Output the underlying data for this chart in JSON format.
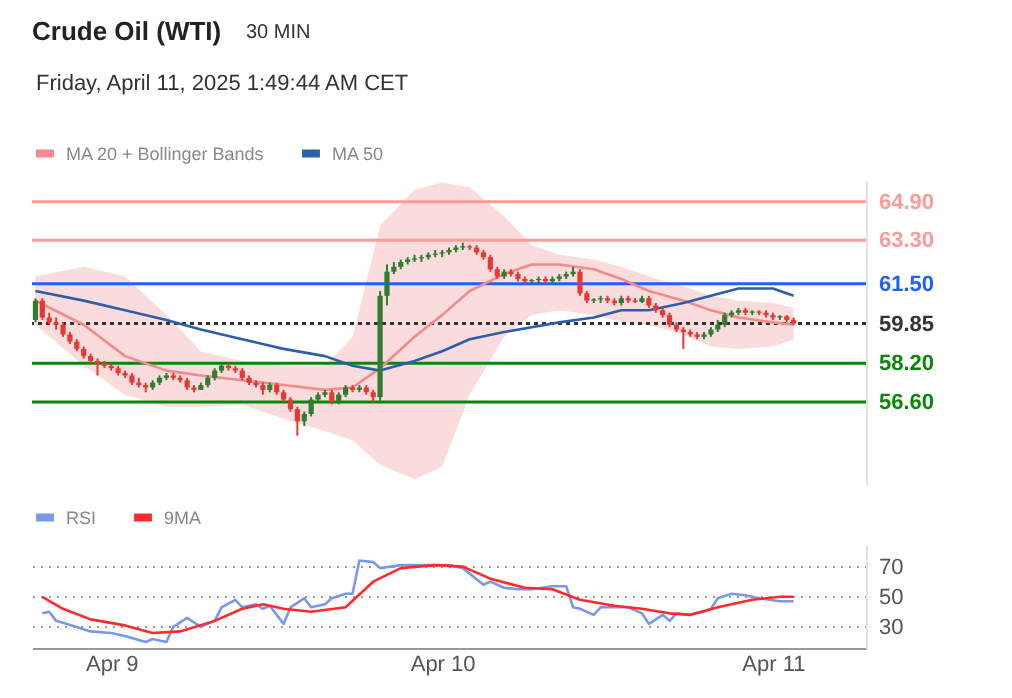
{
  "chart_data": [
    {
      "type": "candlestick",
      "title": "Crude Oil (WTI)",
      "subtitle": "Friday, April 11, 2025 1:49:44 AM CET",
      "annotations": [
        "30 MIN"
      ],
      "x": [
        "2025-04-08T18:30",
        "2025-04-08T19:00",
        "2025-04-08T19:30",
        "2025-04-08T20:00",
        "2025-04-08T20:30",
        "2025-04-08T21:00",
        "2025-04-08T21:30",
        "2025-04-08T22:00",
        "2025-04-08T22:30",
        "2025-04-08T23:00",
        "2025-04-08T23:30",
        "2025-04-09T00:00",
        "2025-04-09T00:30",
        "2025-04-09T01:00",
        "2025-04-09T01:30",
        "2025-04-09T02:00",
        "2025-04-09T02:30",
        "2025-04-09T03:00",
        "2025-04-09T03:30",
        "2025-04-09T04:00",
        "2025-04-09T04:30",
        "2025-04-09T05:00",
        "2025-04-09T05:30",
        "2025-04-09T06:00",
        "2025-04-09T06:30",
        "2025-04-09T07:00",
        "2025-04-09T07:30",
        "2025-04-09T08:00",
        "2025-04-09T08:30",
        "2025-04-09T09:00",
        "2025-04-09T09:30",
        "2025-04-09T10:00",
        "2025-04-09T10:30",
        "2025-04-09T11:00",
        "2025-04-09T11:30",
        "2025-04-09T12:00",
        "2025-04-09T12:30",
        "2025-04-09T13:00",
        "2025-04-09T13:30",
        "2025-04-09T14:00",
        "2025-04-09T14:30",
        "2025-04-09T15:00",
        "2025-04-09T15:30",
        "2025-04-09T16:00",
        "2025-04-09T16:30",
        "2025-04-09T17:00",
        "2025-04-09T17:30",
        "2025-04-09T18:00",
        "2025-04-09T18:30",
        "2025-04-09T19:00",
        "2025-04-09T19:30",
        "2025-04-09T20:00",
        "2025-04-09T20:30",
        "2025-04-09T21:00",
        "2025-04-09T21:30",
        "2025-04-09T22:00",
        "2025-04-09T22:30",
        "2025-04-09T23:00",
        "2025-04-09T23:30",
        "2025-04-10T00:00",
        "2025-04-10T00:30",
        "2025-04-10T01:00",
        "2025-04-10T01:30",
        "2025-04-10T02:00",
        "2025-04-10T02:30",
        "2025-04-10T03:00",
        "2025-04-10T03:30",
        "2025-04-10T04:00",
        "2025-04-10T04:30",
        "2025-04-10T05:00",
        "2025-04-10T05:30",
        "2025-04-10T06:00",
        "2025-04-10T06:30",
        "2025-04-10T07:00",
        "2025-04-10T07:30",
        "2025-04-10T08:00",
        "2025-04-10T08:30",
        "2025-04-10T09:00",
        "2025-04-10T09:30",
        "2025-04-10T10:00",
        "2025-04-10T10:30",
        "2025-04-10T11:00",
        "2025-04-10T11:30",
        "2025-04-10T12:00",
        "2025-04-10T12:30",
        "2025-04-10T13:00",
        "2025-04-10T13:30",
        "2025-04-10T14:00",
        "2025-04-10T14:30",
        "2025-04-10T15:00",
        "2025-04-10T15:30",
        "2025-04-10T16:00",
        "2025-04-10T16:30",
        "2025-04-10T17:00",
        "2025-04-10T17:30",
        "2025-04-10T18:00",
        "2025-04-10T18:30",
        "2025-04-10T19:00",
        "2025-04-10T19:30",
        "2025-04-10T20:00",
        "2025-04-10T20:30",
        "2025-04-10T21:00",
        "2025-04-10T21:30",
        "2025-04-10T22:00",
        "2025-04-10T22:30",
        "2025-04-10T23:00",
        "2025-04-10T23:30",
        "2025-04-11T00:00",
        "2025-04-11T00:30",
        "2025-04-11T01:00",
        "2025-04-11T01:30"
      ],
      "ohlc": [
        [
          60.0,
          60.9,
          59.9,
          60.8
        ],
        [
          60.8,
          60.9,
          60.0,
          60.1
        ],
        [
          60.1,
          60.3,
          59.8,
          59.9
        ],
        [
          59.9,
          60.1,
          59.6,
          59.8
        ],
        [
          59.8,
          59.9,
          59.3,
          59.4
        ],
        [
          59.4,
          59.5,
          59.0,
          59.1
        ],
        [
          59.1,
          59.2,
          58.7,
          58.8
        ],
        [
          58.8,
          58.9,
          58.4,
          58.5
        ],
        [
          58.5,
          58.6,
          58.2,
          58.3
        ],
        [
          58.3,
          58.4,
          57.7,
          58.2
        ],
        [
          58.2,
          58.3,
          58.0,
          58.1
        ],
        [
          58.1,
          58.2,
          57.9,
          58.0
        ],
        [
          58.0,
          58.1,
          57.7,
          57.8
        ],
        [
          57.8,
          57.9,
          57.6,
          57.7
        ],
        [
          57.7,
          57.8,
          57.3,
          57.4
        ],
        [
          57.4,
          57.6,
          57.2,
          57.3
        ],
        [
          57.3,
          57.4,
          57.0,
          57.2
        ],
        [
          57.2,
          57.5,
          57.1,
          57.4
        ],
        [
          57.4,
          57.7,
          57.3,
          57.6
        ],
        [
          57.6,
          57.8,
          57.5,
          57.7
        ],
        [
          57.7,
          57.8,
          57.5,
          57.6
        ],
        [
          57.6,
          57.7,
          57.4,
          57.5
        ],
        [
          57.5,
          57.6,
          57.1,
          57.2
        ],
        [
          57.2,
          57.3,
          57.0,
          57.1
        ],
        [
          57.1,
          57.4,
          57.1,
          57.3
        ],
        [
          57.3,
          57.7,
          57.2,
          57.6
        ],
        [
          57.6,
          58.0,
          57.5,
          57.9
        ],
        [
          57.9,
          58.2,
          57.8,
          58.1
        ],
        [
          58.1,
          58.2,
          57.9,
          58.0
        ],
        [
          58.0,
          58.1,
          57.8,
          57.9
        ],
        [
          57.9,
          58.0,
          57.5,
          57.6
        ],
        [
          57.6,
          57.7,
          57.3,
          57.4
        ],
        [
          57.4,
          57.5,
          57.2,
          57.3
        ],
        [
          57.3,
          57.4,
          56.9,
          57.1
        ],
        [
          57.1,
          57.4,
          57.0,
          57.3
        ],
        [
          57.3,
          57.4,
          56.9,
          57.0
        ],
        [
          57.0,
          57.1,
          56.6,
          56.7
        ],
        [
          56.7,
          56.8,
          56.2,
          56.3
        ],
        [
          56.3,
          56.4,
          55.2,
          55.8
        ],
        [
          55.8,
          56.2,
          55.6,
          56.1
        ],
        [
          56.1,
          56.8,
          56.0,
          56.7
        ],
        [
          56.7,
          57.0,
          56.6,
          56.9
        ],
        [
          56.9,
          57.1,
          56.8,
          57.0
        ],
        [
          57.0,
          57.1,
          56.5,
          56.6
        ],
        [
          56.6,
          57.0,
          56.5,
          56.9
        ],
        [
          56.9,
          57.3,
          56.8,
          57.2
        ],
        [
          57.2,
          57.3,
          57.0,
          57.1
        ],
        [
          57.1,
          57.3,
          57.0,
          57.2
        ],
        [
          57.2,
          57.3,
          56.9,
          57.0
        ],
        [
          57.0,
          57.1,
          56.6,
          56.8
        ],
        [
          56.8,
          61.2,
          56.6,
          61.0
        ],
        [
          61.0,
          62.3,
          60.6,
          62.0
        ],
        [
          62.0,
          62.4,
          61.9,
          62.2
        ],
        [
          62.2,
          62.5,
          62.1,
          62.4
        ],
        [
          62.4,
          62.6,
          62.3,
          62.5
        ],
        [
          62.5,
          62.7,
          62.4,
          62.55
        ],
        [
          62.55,
          62.7,
          62.4,
          62.6
        ],
        [
          62.6,
          62.8,
          62.5,
          62.7
        ],
        [
          62.7,
          62.9,
          62.6,
          62.75
        ],
        [
          62.75,
          62.9,
          62.6,
          62.8
        ],
        [
          62.8,
          63.0,
          62.7,
          62.9
        ],
        [
          62.9,
          63.1,
          62.8,
          63.0
        ],
        [
          63.0,
          63.2,
          62.9,
          63.05
        ],
        [
          63.05,
          63.1,
          62.9,
          63.0
        ],
        [
          63.0,
          63.1,
          62.7,
          62.8
        ],
        [
          62.8,
          62.9,
          62.5,
          62.6
        ],
        [
          62.6,
          62.7,
          62.0,
          62.1
        ],
        [
          62.1,
          62.2,
          61.7,
          61.8
        ],
        [
          61.8,
          62.1,
          61.7,
          62.0
        ],
        [
          62.0,
          62.1,
          61.8,
          61.9
        ],
        [
          61.9,
          62.0,
          61.6,
          61.7
        ],
        [
          61.7,
          61.8,
          61.5,
          61.6
        ],
        [
          61.6,
          61.7,
          61.5,
          61.65
        ],
        [
          61.65,
          61.8,
          61.5,
          61.7
        ],
        [
          61.7,
          61.8,
          61.5,
          61.6
        ],
        [
          61.6,
          61.8,
          61.5,
          61.7
        ],
        [
          61.7,
          61.9,
          61.6,
          61.8
        ],
        [
          61.8,
          62.0,
          61.7,
          61.9
        ],
        [
          61.9,
          62.2,
          61.8,
          62.0
        ],
        [
          62.0,
          62.1,
          61.0,
          61.1
        ],
        [
          61.1,
          61.2,
          60.7,
          60.8
        ],
        [
          60.8,
          60.9,
          60.7,
          60.85
        ],
        [
          60.85,
          61.0,
          60.7,
          60.9
        ],
        [
          60.9,
          61.0,
          60.7,
          60.8
        ],
        [
          60.8,
          60.9,
          60.6,
          60.7
        ],
        [
          60.7,
          61.0,
          60.6,
          60.9
        ],
        [
          60.9,
          61.0,
          60.7,
          60.8
        ],
        [
          60.8,
          60.9,
          60.7,
          60.75
        ],
        [
          60.75,
          61.0,
          60.7,
          60.9
        ],
        [
          60.9,
          61.0,
          60.5,
          60.6
        ],
        [
          60.6,
          60.7,
          60.3,
          60.4
        ],
        [
          60.4,
          60.5,
          60.1,
          60.2
        ],
        [
          60.2,
          60.3,
          59.7,
          59.8
        ],
        [
          59.8,
          59.9,
          59.5,
          59.6
        ],
        [
          59.6,
          59.7,
          58.8,
          59.5
        ],
        [
          59.5,
          59.6,
          59.3,
          59.4
        ],
        [
          59.4,
          59.5,
          59.2,
          59.3
        ],
        [
          59.3,
          59.5,
          59.2,
          59.4
        ],
        [
          59.4,
          59.7,
          59.3,
          59.6
        ],
        [
          59.6,
          60.0,
          59.5,
          59.8
        ],
        [
          59.8,
          60.3,
          59.7,
          60.2
        ],
        [
          60.2,
          60.4,
          60.1,
          60.3
        ],
        [
          60.3,
          60.5,
          60.2,
          60.4
        ],
        [
          60.4,
          60.5,
          60.2,
          60.3
        ],
        [
          60.3,
          60.4,
          60.2,
          60.35
        ],
        [
          60.35,
          60.4,
          60.2,
          60.3
        ],
        [
          60.3,
          60.4,
          60.1,
          60.2
        ],
        [
          60.2,
          60.3,
          60.0,
          60.1
        ],
        [
          60.1,
          60.2,
          60.0,
          60.15
        ],
        [
          60.15,
          60.2,
          59.9,
          60.0
        ],
        [
          60.0,
          60.1,
          59.8,
          59.85
        ]
      ],
      "series": [
        {
          "name": "MA 20 + Bollinger Bands",
          "type": "line",
          "color": "#f28b8b",
          "x": [
            "2025-04-08T18:30",
            "2025-04-08T22:00",
            "2025-04-09T01:00",
            "2025-04-09T04:00",
            "2025-04-09T06:30",
            "2025-04-09T09:30",
            "2025-04-09T12:30",
            "2025-04-09T15:30",
            "2025-04-09T17:30",
            "2025-04-09T19:30",
            "2025-04-09T22:00",
            "2025-04-10T00:00",
            "2025-04-10T02:00",
            "2025-04-10T04:30",
            "2025-04-10T06:30",
            "2025-04-10T08:30",
            "2025-04-10T11:00",
            "2025-04-10T13:00",
            "2025-04-10T15:00",
            "2025-04-10T17:30",
            "2025-04-10T19:30",
            "2025-04-10T21:30",
            "2025-04-11T00:00",
            "2025-04-11T01:30"
          ],
          "values": [
            60.8,
            59.8,
            58.5,
            57.9,
            57.7,
            57.5,
            57.3,
            57.1,
            57.2,
            58.0,
            59.3,
            60.2,
            61.2,
            61.9,
            62.3,
            62.3,
            62.1,
            61.7,
            61.2,
            60.8,
            60.4,
            60.1,
            59.9,
            59.8
          ],
          "upper": [
            61.8,
            62.2,
            61.8,
            60.2,
            58.7,
            58.3,
            58.1,
            58.1,
            59.3,
            63.9,
            65.4,
            65.7,
            65.5,
            64.3,
            63.1,
            62.7,
            62.5,
            62.2,
            61.8,
            61.4,
            61.0,
            60.8,
            60.7,
            60.5
          ],
          "lower": [
            59.8,
            58.1,
            56.9,
            56.4,
            56.4,
            56.5,
            55.9,
            55.4,
            55.0,
            54.0,
            53.4,
            53.9,
            56.9,
            59.3,
            60.2,
            60.4,
            60.2,
            59.9,
            59.8,
            59.4,
            58.9,
            58.8,
            58.9,
            59.2
          ]
        },
        {
          "name": "MA 50",
          "type": "line",
          "color": "#2f5ea8",
          "x": [
            "2025-04-08T18:30",
            "2025-04-08T22:00",
            "2025-04-09T01:00",
            "2025-04-09T04:00",
            "2025-04-09T06:30",
            "2025-04-09T09:30",
            "2025-04-09T12:30",
            "2025-04-09T15:30",
            "2025-04-09T17:30",
            "2025-04-09T19:30",
            "2025-04-09T22:00",
            "2025-04-10T00:00",
            "2025-04-10T02:00",
            "2025-04-10T04:30",
            "2025-04-10T06:30",
            "2025-04-10T08:30",
            "2025-04-10T11:00",
            "2025-04-10T13:00",
            "2025-04-10T15:00",
            "2025-04-10T17:30",
            "2025-04-10T19:30",
            "2025-04-10T21:30",
            "2025-04-11T00:00",
            "2025-04-11T01:30"
          ],
          "values": [
            61.2,
            60.8,
            60.4,
            60.0,
            59.6,
            59.2,
            58.8,
            58.5,
            58.1,
            57.9,
            58.3,
            58.7,
            59.2,
            59.5,
            59.7,
            59.9,
            60.1,
            60.4,
            60.4,
            60.7,
            61.0,
            61.3,
            61.3,
            61.0
          ]
        }
      ],
      "ref_lines": [
        {
          "axis": "y",
          "value": 64.9,
          "color": "#ff9a9a"
        },
        {
          "axis": "y",
          "value": 63.3,
          "color": "#ff9a9a"
        },
        {
          "axis": "y",
          "value": 61.5,
          "color": "#1f5fff"
        },
        {
          "axis": "y",
          "value": 59.85,
          "color": "#333333",
          "line_style": "dotted"
        },
        {
          "axis": "y",
          "value": 58.2,
          "color": "#0a870a"
        },
        {
          "axis": "y",
          "value": 56.6,
          "color": "#0a870a"
        }
      ],
      "xlim": [
        "2025-04-08T18:15",
        "2025-04-11T06:45"
      ],
      "ylim": [
        53.2,
        65.8
      ],
      "yticks": [
        {
          "value": 64.9,
          "label": "64.90"
        },
        {
          "value": 63.3,
          "label": "63.30"
        },
        {
          "value": 61.5,
          "label": "61.50"
        },
        {
          "value": 59.85,
          "label": "59.85"
        },
        {
          "value": 58.2,
          "label": "58.20"
        },
        {
          "value": 56.6,
          "label": "56.60"
        }
      ],
      "tick_labels": "y",
      "grid": false,
      "legend": "top left"
    },
    {
      "type": "line",
      "series": [
        {
          "name": "RSI",
          "color": "#7b97e8",
          "x": [
            "2025-04-08T19:00",
            "2025-04-08T19:30",
            "2025-04-08T20:00",
            "2025-04-08T21:30",
            "2025-04-08T22:30",
            "2025-04-09T00:00",
            "2025-04-09T01:00",
            "2025-04-09T02:30",
            "2025-04-09T03:00",
            "2025-04-09T04:00",
            "2025-04-09T04:30",
            "2025-04-09T05:30",
            "2025-04-09T06:30",
            "2025-04-09T07:30",
            "2025-04-09T08:00",
            "2025-04-09T09:00",
            "2025-04-09T09:30",
            "2025-04-09T10:30",
            "2025-04-09T11:00",
            "2025-04-09T11:30",
            "2025-04-09T12:30",
            "2025-04-09T13:00",
            "2025-04-09T14:00",
            "2025-04-09T14:30",
            "2025-04-09T15:30",
            "2025-04-09T16:00",
            "2025-04-09T17:00",
            "2025-04-09T17:30",
            "2025-04-09T18:00",
            "2025-04-09T19:00",
            "2025-04-09T19:30",
            "2025-04-09T21:00",
            "2025-04-09T23:30",
            "2025-04-10T00:30",
            "2025-04-10T01:30",
            "2025-04-10T03:00",
            "2025-04-10T03:30",
            "2025-04-10T04:30",
            "2025-04-10T05:30",
            "2025-04-10T06:30",
            "2025-04-10T08:00",
            "2025-04-10T09:00",
            "2025-04-10T09:30",
            "2025-04-10T10:00",
            "2025-04-10T11:00",
            "2025-04-10T11:30",
            "2025-04-10T12:30",
            "2025-04-10T13:30",
            "2025-04-10T14:30",
            "2025-04-10T15:00",
            "2025-04-10T16:00",
            "2025-04-10T16:30",
            "2025-04-10T17:00",
            "2025-04-10T18:00",
            "2025-04-10T19:00",
            "2025-04-10T19:30",
            "2025-04-10T20:00",
            "2025-04-10T21:00",
            "2025-04-10T22:00",
            "2025-04-10T23:00",
            "2025-04-11T00:30",
            "2025-04-11T01:30"
          ],
          "values": [
            39,
            40,
            34,
            30,
            27,
            26,
            24,
            20,
            22,
            20,
            30,
            36,
            30,
            34,
            43,
            48,
            43,
            45,
            42,
            44,
            32,
            43,
            49,
            43,
            45,
            49,
            52,
            52,
            74,
            73,
            69,
            71,
            71,
            71,
            69,
            58,
            60,
            56,
            55,
            55,
            57,
            57,
            43,
            42,
            38,
            43,
            43,
            43,
            39,
            32,
            38,
            34,
            39,
            38,
            40,
            42,
            49,
            52,
            51,
            49,
            47,
            47
          ]
        },
        {
          "name": "9MA",
          "color": "#ff2a2a",
          "x": [
            "2025-04-08T19:00",
            "2025-04-08T20:30",
            "2025-04-08T22:30",
            "2025-04-09T01:00",
            "2025-04-09T03:00",
            "2025-04-09T05:00",
            "2025-04-09T07:30",
            "2025-04-09T09:30",
            "2025-04-09T11:00",
            "2025-04-09T12:30",
            "2025-04-09T14:30",
            "2025-04-09T17:00",
            "2025-04-09T19:00",
            "2025-04-09T21:00",
            "2025-04-09T23:30",
            "2025-04-10T01:30",
            "2025-04-10T03:30",
            "2025-04-10T06:00",
            "2025-04-10T08:00",
            "2025-04-10T10:00",
            "2025-04-10T12:30",
            "2025-04-10T14:30",
            "2025-04-10T16:30",
            "2025-04-10T18:00",
            "2025-04-10T20:00",
            "2025-04-10T22:30",
            "2025-04-11T00:30",
            "2025-04-11T01:30"
          ],
          "values": [
            50,
            42,
            35,
            31,
            26,
            27,
            34,
            42,
            45,
            42,
            40,
            43,
            60,
            69,
            71,
            70,
            62,
            56,
            55,
            48,
            44,
            42,
            39,
            38,
            43,
            48,
            50,
            50
          ]
        }
      ],
      "xlim": [
        "2025-04-08T18:15",
        "2025-04-11T06:45"
      ],
      "xticks": [
        {
          "value": "2025-04-09",
          "label": "Apr 9"
        },
        {
          "value": "2025-04-10",
          "label": "Apr 10"
        },
        {
          "value": "2025-04-11",
          "label": "Apr 11"
        }
      ],
      "ylim": [
        16,
        85
      ],
      "yticks": [
        30,
        50,
        70
      ],
      "grid": "y",
      "legend": "top left"
    }
  ]
}
